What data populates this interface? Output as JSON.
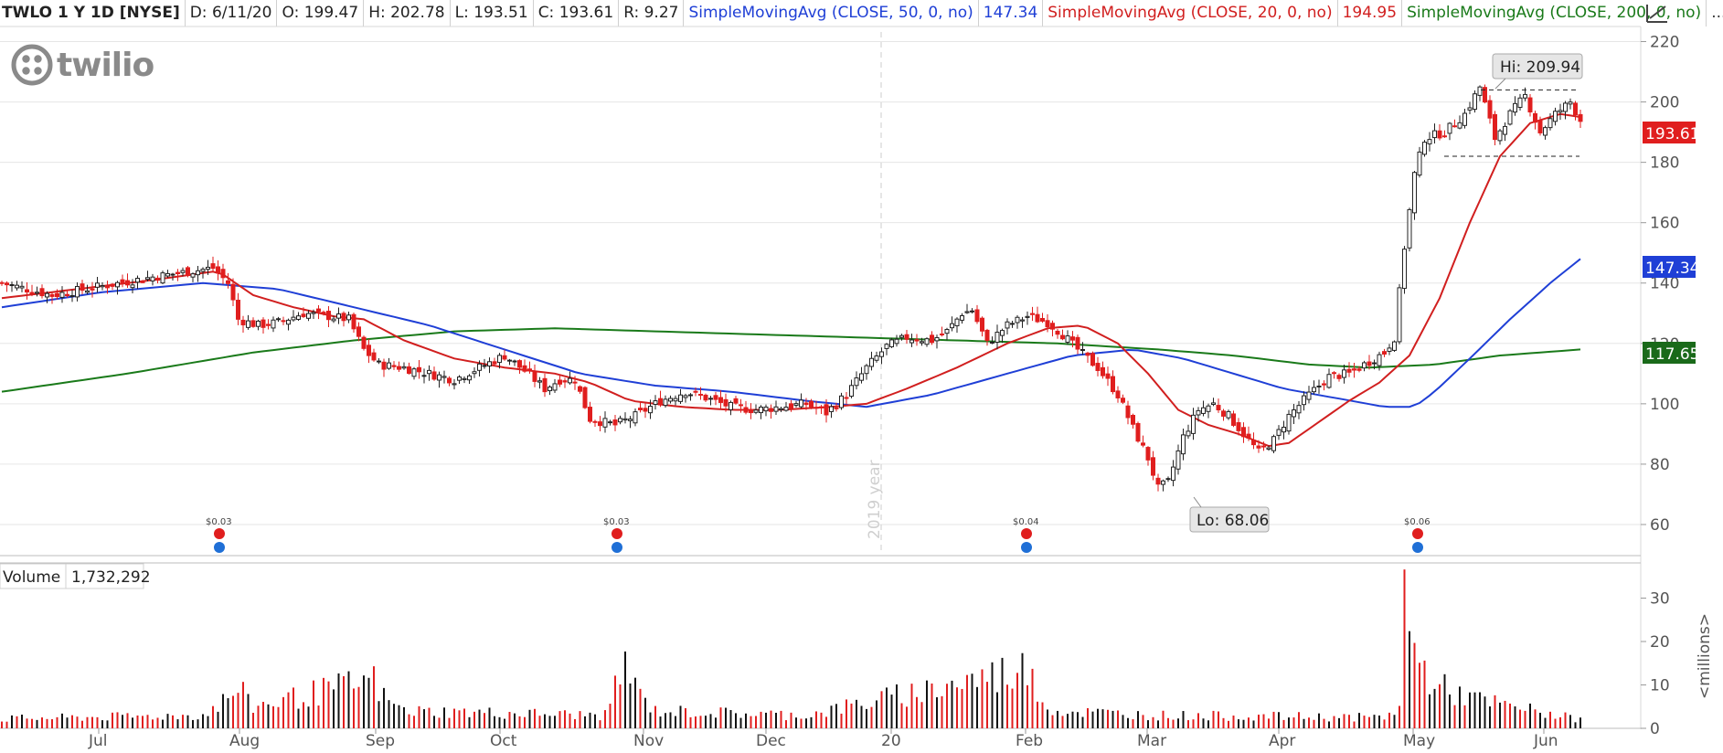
{
  "header": {
    "symbol": "TWLO 1 Y 1D [NYSE]",
    "date": "D: 6/11/20",
    "open": "O: 199.47",
    "high": "H: 202.78",
    "low": "L: 193.51",
    "close": "C: 193.61",
    "range": "R: 9.27",
    "sma50_label": "SimpleMovingAvg (CLOSE, 50, 0, no)",
    "sma50_value": "147.34",
    "sma20_label": "SimpleMovingAvg (CLOSE, 20, 0, no)",
    "sma20_value": "194.95",
    "sma200_label": "SimpleMovingAvg (CLOSE, 200, 0, no)",
    "more": "..."
  },
  "logo": {
    "text": "twilio",
    "icon": "twilio-logo-icon"
  },
  "colors": {
    "up": "#ffffff",
    "down": "#e01e1e",
    "candle_stroke": "#222222",
    "sma20": "#d11f1f",
    "sma50": "#1f3fd6",
    "sma200": "#1a7a1a",
    "grid": "#e6e6e6"
  },
  "price_axis": {
    "ticks": [
      "220",
      "200",
      "180",
      "160",
      "140",
      "120",
      "100",
      "80",
      "60"
    ]
  },
  "badges": {
    "last_price": "193.61",
    "sma50": "147.34",
    "sma200": "117.65"
  },
  "callouts": {
    "high": "Hi: 209.94",
    "low": "Lo: 68.06"
  },
  "watermark": "2019 year",
  "dividends": [
    "$0.03",
    "$0.03",
    "$0.04",
    "$0.06"
  ],
  "volume": {
    "title": "Volume",
    "value": "1,732,292",
    "ticks": [
      "30",
      "20",
      "10",
      "0"
    ],
    "unit": "<millions>"
  },
  "months": [
    "Jul",
    "Aug",
    "Sep",
    "Oct",
    "Nov",
    "Dec",
    "20",
    "Feb",
    "Mar",
    "Apr",
    "May",
    "Jun"
  ],
  "chart_data": {
    "type": "candlestick",
    "title": "TWLO 1 Y 1D [NYSE]",
    "ylim": [
      50,
      225
    ],
    "volume_ylim": [
      0,
      32
    ],
    "anchors_price": [
      [
        0,
        140
      ],
      [
        10,
        136
      ],
      [
        20,
        139
      ],
      [
        30,
        142
      ],
      [
        38,
        144
      ],
      [
        42,
        145
      ],
      [
        45,
        140
      ],
      [
        47,
        128
      ],
      [
        51,
        126
      ],
      [
        55,
        127
      ],
      [
        60,
        130
      ],
      [
        65,
        129
      ],
      [
        69,
        128
      ],
      [
        72,
        118
      ],
      [
        75,
        113
      ],
      [
        80,
        112
      ],
      [
        85,
        110
      ],
      [
        90,
        108
      ],
      [
        95,
        112
      ],
      [
        100,
        116
      ],
      [
        104,
        111
      ],
      [
        108,
        105
      ],
      [
        111,
        108
      ],
      [
        114,
        108
      ],
      [
        117,
        95
      ],
      [
        122,
        93
      ],
      [
        126,
        96
      ],
      [
        131,
        101
      ],
      [
        136,
        104
      ],
      [
        140,
        102
      ],
      [
        145,
        99
      ],
      [
        150,
        98
      ],
      [
        155,
        99
      ],
      [
        160,
        100
      ],
      [
        164,
        97
      ],
      [
        168,
        103
      ],
      [
        172,
        112
      ],
      [
        176,
        119
      ],
      [
        180,
        122
      ],
      [
        185,
        121
      ],
      [
        188,
        124
      ],
      [
        191,
        130
      ],
      [
        193,
        131
      ],
      [
        196,
        120
      ],
      [
        200,
        126
      ],
      [
        204,
        129
      ],
      [
        208,
        127
      ],
      [
        211,
        123
      ],
      [
        214,
        118
      ],
      [
        218,
        112
      ],
      [
        222,
        103
      ],
      [
        225,
        92
      ],
      [
        228,
        82
      ],
      [
        230,
        72
      ],
      [
        232,
        74
      ],
      [
        235,
        89
      ],
      [
        238,
        98
      ],
      [
        241,
        100
      ],
      [
        244,
        96
      ],
      [
        247,
        90
      ],
      [
        250,
        84
      ],
      [
        253,
        88
      ],
      [
        256,
        96
      ],
      [
        260,
        103
      ],
      [
        264,
        109
      ],
      [
        268,
        110
      ],
      [
        272,
        114
      ],
      [
        275,
        117
      ],
      [
        277,
        122
      ],
      [
        279,
        152
      ],
      [
        281,
        176
      ],
      [
        283,
        188
      ],
      [
        287,
        190
      ],
      [
        291,
        196
      ],
      [
        294,
        205
      ],
      [
        297,
        188
      ],
      [
        300,
        196
      ],
      [
        303,
        202
      ],
      [
        306,
        190
      ],
      [
        309,
        196
      ],
      [
        312,
        200
      ],
      [
        314,
        194
      ]
    ],
    "sma20": [
      [
        0,
        135
      ],
      [
        15,
        138
      ],
      [
        30,
        141
      ],
      [
        43,
        144
      ],
      [
        50,
        136
      ],
      [
        58,
        132
      ],
      [
        66,
        129
      ],
      [
        72,
        128
      ],
      [
        80,
        121
      ],
      [
        90,
        115
      ],
      [
        100,
        112
      ],
      [
        110,
        110
      ],
      [
        117,
        107
      ],
      [
        125,
        101
      ],
      [
        135,
        99
      ],
      [
        145,
        98
      ],
      [
        155,
        98
      ],
      [
        165,
        99
      ],
      [
        172,
        100
      ],
      [
        180,
        105
      ],
      [
        190,
        112
      ],
      [
        200,
        120
      ],
      [
        208,
        125
      ],
      [
        215,
        126
      ],
      [
        222,
        120
      ],
      [
        228,
        110
      ],
      [
        234,
        98
      ],
      [
        240,
        93
      ],
      [
        246,
        90
      ],
      [
        252,
        86
      ],
      [
        256,
        87
      ],
      [
        262,
        94
      ],
      [
        268,
        101
      ],
      [
        274,
        107
      ],
      [
        280,
        116
      ],
      [
        286,
        135
      ],
      [
        292,
        160
      ],
      [
        298,
        182
      ],
      [
        304,
        193
      ],
      [
        310,
        196
      ],
      [
        314,
        195
      ]
    ],
    "sma50": [
      [
        0,
        132
      ],
      [
        20,
        137
      ],
      [
        40,
        140
      ],
      [
        55,
        138
      ],
      [
        70,
        132
      ],
      [
        85,
        126
      ],
      [
        100,
        118
      ],
      [
        115,
        110
      ],
      [
        130,
        106
      ],
      [
        145,
        104
      ],
      [
        160,
        101
      ],
      [
        172,
        99
      ],
      [
        185,
        103
      ],
      [
        200,
        110
      ],
      [
        213,
        116
      ],
      [
        225,
        118
      ],
      [
        235,
        115
      ],
      [
        245,
        110
      ],
      [
        255,
        105
      ],
      [
        265,
        102
      ],
      [
        275,
        99
      ],
      [
        281,
        99
      ],
      [
        285,
        104
      ],
      [
        292,
        115
      ],
      [
        300,
        128
      ],
      [
        308,
        140
      ],
      [
        314,
        148
      ]
    ],
    "sma200": [
      [
        0,
        104
      ],
      [
        25,
        110
      ],
      [
        50,
        117
      ],
      [
        70,
        121
      ],
      [
        90,
        124
      ],
      [
        110,
        125
      ],
      [
        130,
        124
      ],
      [
        150,
        123
      ],
      [
        170,
        122
      ],
      [
        190,
        121
      ],
      [
        210,
        120
      ],
      [
        230,
        118
      ],
      [
        245,
        116
      ],
      [
        260,
        113
      ],
      [
        272,
        112
      ],
      [
        285,
        113
      ],
      [
        298,
        116
      ],
      [
        314,
        118
      ]
    ],
    "volume_anchors": [
      [
        0,
        2.2
      ],
      [
        40,
        3
      ],
      [
        45,
        7
      ],
      [
        47,
        9
      ],
      [
        50,
        5
      ],
      [
        74,
        11
      ],
      [
        76,
        7
      ],
      [
        80,
        4
      ],
      [
        120,
        3
      ],
      [
        124,
        15.5
      ],
      [
        126,
        9
      ],
      [
        130,
        4
      ],
      [
        160,
        3
      ],
      [
        205,
        14
      ],
      [
        207,
        6
      ],
      [
        210,
        4
      ],
      [
        230,
        3
      ],
      [
        275,
        2.5
      ],
      [
        278,
        5
      ],
      [
        279,
        31
      ],
      [
        281,
        17
      ],
      [
        283,
        13
      ],
      [
        285,
        11
      ],
      [
        287,
        9
      ],
      [
        295,
        6
      ],
      [
        300,
        5
      ],
      [
        305,
        4
      ],
      [
        314,
        2
      ]
    ],
    "high": 209.94,
    "low": 68.06,
    "last": 193.61,
    "range_lines": [
      204,
      182
    ]
  }
}
